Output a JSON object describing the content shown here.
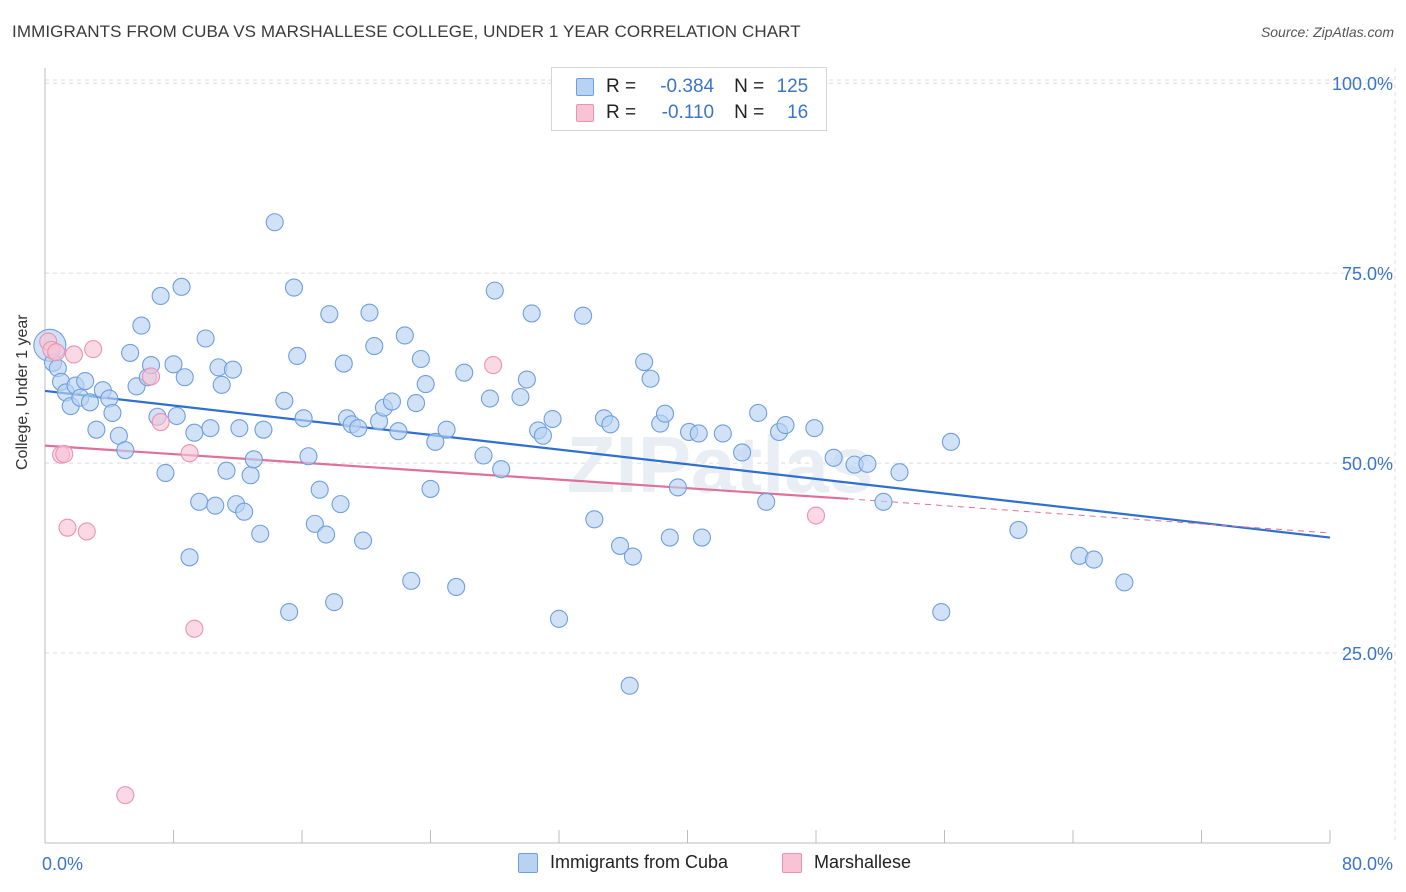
{
  "title": "IMMIGRANTS FROM CUBA VS MARSHALLESE COLLEGE, UNDER 1 YEAR CORRELATION CHART",
  "source_prefix": "Source: ",
  "source_name": "ZipAtlas.com",
  "watermark": "ZIPatlas",
  "legend": {
    "r_label": "R =",
    "n_label": "N =",
    "rows": [
      {
        "r": "-0.384",
        "n": "125"
      },
      {
        "r": "-0.110",
        "n": "16"
      }
    ]
  },
  "colors": {
    "blue_fill": "#b8d2f2",
    "blue_edge": "#6f9fde",
    "blue_line": "#2f6fd0",
    "pink_fill": "#f8c3d5",
    "pink_edge": "#ec92b2",
    "pink_line": "#e0709a",
    "axis_text": "#3b75c9"
  },
  "chart_data": {
    "type": "scatter",
    "title": "IMMIGRANTS FROM CUBA VS MARSHALLESE COLLEGE, UNDER 1 YEAR CORRELATION CHART",
    "xlabel": "",
    "ylabel": "College, Under 1 year",
    "xlim": [
      0,
      80
    ],
    "ylim": [
      0,
      102
    ],
    "x_tick_labels": [
      "0.0%",
      "80.0%"
    ],
    "y_ticks": [
      25,
      50,
      75,
      100
    ],
    "y_tick_labels": [
      "25.0%",
      "50.0%",
      "75.0%",
      "100.0%"
    ],
    "grid": true,
    "legend_position": "top-center",
    "series": [
      {
        "name": "Immigrants from Cuba",
        "r": -0.384,
        "n": 125,
        "trend": {
          "x0": 0,
          "y0": 59.5,
          "x1": 80,
          "y1": 40.2
        },
        "points": [
          [
            0.3,
            65.5
          ],
          [
            0.5,
            63.2
          ],
          [
            0.8,
            62.5
          ],
          [
            1.0,
            60.7
          ],
          [
            1.3,
            59.3
          ],
          [
            1.6,
            57.5
          ],
          [
            1.9,
            60.2
          ],
          [
            2.2,
            58.6
          ],
          [
            2.5,
            60.8
          ],
          [
            2.8,
            58.0
          ],
          [
            3.2,
            54.4
          ],
          [
            3.6,
            59.6
          ],
          [
            4.0,
            58.5
          ],
          [
            4.2,
            56.6
          ],
          [
            4.6,
            53.6
          ],
          [
            5.0,
            51.7
          ],
          [
            5.3,
            64.5
          ],
          [
            5.7,
            60.1
          ],
          [
            6.0,
            68.1
          ],
          [
            6.4,
            61.3
          ],
          [
            6.6,
            62.9
          ],
          [
            7.0,
            56.1
          ],
          [
            7.2,
            72.0
          ],
          [
            7.5,
            48.7
          ],
          [
            8.0,
            63.0
          ],
          [
            8.2,
            56.2
          ],
          [
            8.5,
            73.2
          ],
          [
            8.7,
            61.3
          ],
          [
            9.0,
            37.6
          ],
          [
            9.3,
            54.0
          ],
          [
            9.6,
            44.9
          ],
          [
            10.0,
            66.4
          ],
          [
            10.3,
            54.6
          ],
          [
            10.6,
            44.4
          ],
          [
            10.8,
            62.6
          ],
          [
            11.0,
            60.3
          ],
          [
            11.3,
            49.0
          ],
          [
            11.7,
            62.3
          ],
          [
            11.9,
            44.6
          ],
          [
            12.1,
            54.6
          ],
          [
            12.4,
            43.6
          ],
          [
            12.8,
            48.4
          ],
          [
            13.0,
            50.5
          ],
          [
            13.4,
            40.7
          ],
          [
            13.6,
            54.4
          ],
          [
            14.3,
            81.7
          ],
          [
            14.9,
            58.2
          ],
          [
            15.2,
            30.4
          ],
          [
            15.5,
            73.1
          ],
          [
            15.7,
            64.1
          ],
          [
            16.1,
            55.9
          ],
          [
            16.4,
            50.9
          ],
          [
            16.8,
            42.0
          ],
          [
            17.1,
            46.5
          ],
          [
            17.5,
            40.6
          ],
          [
            17.7,
            69.6
          ],
          [
            18.0,
            31.7
          ],
          [
            18.4,
            44.6
          ],
          [
            18.6,
            63.1
          ],
          [
            18.8,
            55.9
          ],
          [
            19.1,
            55.1
          ],
          [
            19.5,
            54.6
          ],
          [
            19.8,
            39.8
          ],
          [
            20.2,
            69.8
          ],
          [
            20.5,
            65.4
          ],
          [
            20.8,
            55.5
          ],
          [
            21.1,
            57.3
          ],
          [
            21.6,
            58.1
          ],
          [
            22.0,
            54.2
          ],
          [
            22.4,
            66.8
          ],
          [
            22.8,
            34.5
          ],
          [
            23.1,
            57.9
          ],
          [
            23.4,
            63.7
          ],
          [
            23.7,
            60.4
          ],
          [
            24.0,
            46.6
          ],
          [
            24.3,
            52.8
          ],
          [
            25.0,
            54.4
          ],
          [
            25.6,
            33.7
          ],
          [
            26.1,
            61.9
          ],
          [
            27.3,
            51.0
          ],
          [
            27.7,
            58.5
          ],
          [
            28.0,
            72.7
          ],
          [
            28.4,
            49.2
          ],
          [
            29.6,
            58.7
          ],
          [
            30.0,
            61.0
          ],
          [
            30.3,
            69.7
          ],
          [
            30.7,
            54.3
          ],
          [
            31.0,
            53.6
          ],
          [
            31.6,
            55.8
          ],
          [
            32.0,
            29.5
          ],
          [
            33.5,
            69.4
          ],
          [
            34.2,
            42.6
          ],
          [
            34.8,
            55.9
          ],
          [
            35.2,
            55.1
          ],
          [
            35.8,
            39.1
          ],
          [
            36.6,
            37.7
          ],
          [
            37.3,
            63.3
          ],
          [
            37.7,
            61.1
          ],
          [
            38.3,
            55.2
          ],
          [
            38.6,
            56.5
          ],
          [
            38.9,
            40.2
          ],
          [
            39.4,
            46.8
          ],
          [
            40.1,
            54.1
          ],
          [
            40.7,
            53.9
          ],
          [
            40.9,
            40.2
          ],
          [
            42.2,
            53.9
          ],
          [
            43.4,
            51.4
          ],
          [
            44.4,
            56.6
          ],
          [
            44.9,
            44.9
          ],
          [
            45.7,
            54.1
          ],
          [
            46.1,
            55.0
          ],
          [
            47.9,
            54.6
          ],
          [
            49.1,
            50.7
          ],
          [
            50.4,
            49.8
          ],
          [
            51.2,
            49.9
          ],
          [
            52.2,
            44.9
          ],
          [
            53.2,
            48.8
          ],
          [
            55.8,
            30.4
          ],
          [
            56.4,
            52.8
          ],
          [
            60.6,
            41.2
          ],
          [
            64.4,
            37.8
          ],
          [
            65.3,
            37.3
          ],
          [
            67.2,
            34.3
          ],
          [
            36.4,
            20.7
          ]
        ]
      },
      {
        "name": "Marshallese",
        "r": -0.11,
        "n": 16,
        "trend": {
          "x0": 0,
          "y0": 52.3,
          "x1": 50,
          "y1": 45.3,
          "dash_to_x": 80,
          "dash_to_y": 40.8
        },
        "points": [
          [
            0.2,
            66.0
          ],
          [
            0.4,
            64.9
          ],
          [
            0.7,
            64.6
          ],
          [
            1.0,
            51.1
          ],
          [
            1.2,
            51.2
          ],
          [
            1.4,
            41.5
          ],
          [
            1.8,
            64.3
          ],
          [
            2.6,
            41.0
          ],
          [
            3.0,
            65.0
          ],
          [
            5.0,
            6.3
          ],
          [
            6.6,
            61.4
          ],
          [
            7.2,
            55.4
          ],
          [
            9.0,
            51.3
          ],
          [
            9.3,
            28.2
          ],
          [
            27.9,
            62.9
          ],
          [
            48.0,
            43.1
          ]
        ]
      }
    ]
  },
  "bottom_legend": [
    {
      "label": "Immigrants from Cuba"
    },
    {
      "label": "Marshallese"
    }
  ]
}
